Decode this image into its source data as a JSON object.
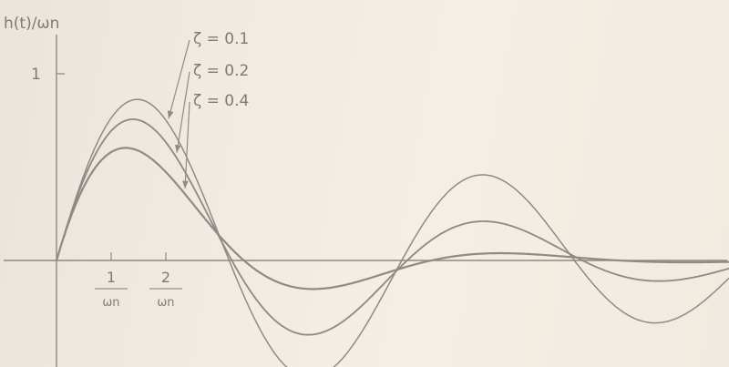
{
  "chart_data": {
    "type": "line",
    "title": "",
    "ylabel": "h(t)/ωn",
    "xlabel": "",
    "xlim": [
      0,
      12.3
    ],
    "ylim": [
      -1.15,
      1.0
    ],
    "y_tick_labels": [
      {
        "value": 1,
        "label": "1"
      }
    ],
    "x_tick_labels": [
      {
        "value": 1,
        "numerator": "1",
        "denominator": "ωn"
      },
      {
        "value": 2,
        "numerator": "2",
        "denominator": "ωn"
      }
    ],
    "grid": false,
    "legend": "annotations with arrows, top-center",
    "series": [
      {
        "name": "ζ = 0.1",
        "zeta": 0.1
      },
      {
        "name": "ζ = 0.2",
        "zeta": 0.2
      },
      {
        "name": "ζ = 0.4",
        "zeta": 0.4
      }
    ],
    "colors": {
      "axes": "#8e8982",
      "curves": "#8f8a84",
      "text": "#7f7a73"
    }
  }
}
